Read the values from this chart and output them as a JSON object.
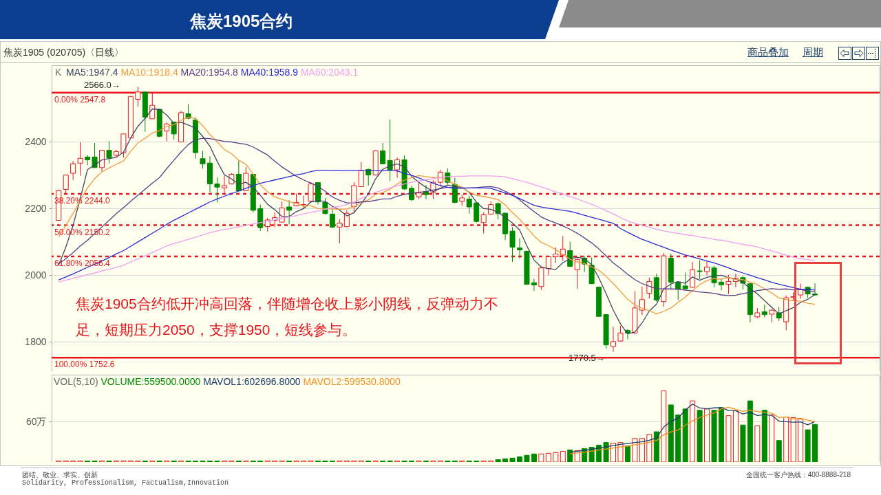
{
  "chart_data": [
    {
      "type": "candlestick",
      "title": "焦炭1905合约",
      "subtitle": "焦炭1905 (020705)〈日线〉",
      "categories": [
        null,
        null,
        null,
        null,
        null,
        null,
        null,
        null,
        null,
        null,
        null,
        null,
        null,
        null,
        null,
        null,
        null,
        null,
        null,
        null,
        null,
        null,
        null,
        null,
        null,
        null,
        null,
        null,
        null,
        null,
        null,
        null,
        null,
        null,
        null,
        null,
        null,
        null,
        null,
        null,
        null,
        null,
        null,
        null,
        null,
        null,
        null,
        null,
        null,
        null,
        null,
        null,
        null,
        null,
        null,
        null,
        null,
        null,
        null,
        null,
        null,
        null,
        null,
        null,
        null,
        null,
        null,
        null,
        null,
        null,
        null,
        null,
        null,
        null,
        null,
        null,
        null,
        null,
        null,
        null,
        null,
        null,
        null,
        null,
        null,
        null,
        null,
        null,
        null,
        null,
        null,
        null,
        null,
        null,
        null,
        null,
        null,
        null,
        null,
        null,
        null,
        null,
        null,
        null,
        null,
        null
      ],
      "ohlc": [
        [
          2164.8,
          2253.7,
          2164.8,
          2253.7
        ],
        [
          2257.7,
          2300.8,
          2245,
          2300.8
        ],
        [
          2306,
          2343,
          2286,
          2334.5
        ],
        [
          2336.5,
          2399,
          2299,
          2351
        ],
        [
          2355,
          2361,
          2330,
          2346.5
        ],
        [
          2355,
          2397,
          2323,
          2323
        ],
        [
          2323,
          2375,
          2311,
          2375
        ],
        [
          2375,
          2402,
          2336,
          2352
        ],
        [
          2360,
          2376,
          2353.5,
          2371.5
        ],
        [
          2367,
          2424,
          2353.5,
          2424
        ],
        [
          2412,
          2536.5,
          2412,
          2536.5
        ],
        [
          2528,
          2566,
          2505,
          2550
        ],
        [
          2550,
          2550,
          2431,
          2474.5
        ],
        [
          2469.5,
          2548,
          2469.5,
          2510
        ],
        [
          2498,
          2498,
          2414,
          2417
        ],
        [
          2433,
          2458,
          2402,
          2454
        ],
        [
          2460,
          2460,
          2407,
          2424
        ],
        [
          2400,
          2493,
          2400,
          2488
        ],
        [
          2484.5,
          2513.5,
          2468,
          2471
        ],
        [
          2466,
          2474,
          2350,
          2368
        ],
        [
          2350,
          2373.5,
          2320,
          2334.5
        ],
        [
          2336.5,
          2357,
          2249,
          2274
        ],
        [
          2274,
          2292.7,
          2218.7,
          2264.5
        ],
        [
          2262.4,
          2299.5,
          2242,
          2269
        ],
        [
          2274,
          2306,
          2272.5,
          2303
        ],
        [
          2303,
          2343,
          2249,
          2253.7
        ],
        [
          2253.7,
          2325,
          2253.7,
          2306
        ],
        [
          2303,
          2303,
          2188,
          2195
        ],
        [
          2200,
          2212,
          2132.5,
          2143
        ],
        [
          2146,
          2171.5,
          2131,
          2166
        ],
        [
          2164.8,
          2188,
          2144.5,
          2173
        ],
        [
          2159.4,
          2222,
          2158,
          2202
        ],
        [
          2205,
          2225.4,
          2152.7,
          2195
        ],
        [
          2208.5,
          2245.6,
          2206.5,
          2218.6
        ],
        [
          2212,
          2239,
          2202,
          2212
        ],
        [
          2222,
          2279,
          2218.6,
          2274
        ],
        [
          2278,
          2278,
          2212,
          2220
        ],
        [
          2218.6,
          2232,
          2181.6,
          2185
        ],
        [
          2183.6,
          2198.5,
          2141,
          2144.6
        ],
        [
          2144.6,
          2168,
          2096,
          2156.7
        ],
        [
          2146,
          2195,
          2144.6,
          2186
        ],
        [
          2206.5,
          2279,
          2185,
          2269
        ],
        [
          2265.8,
          2340,
          2264.5,
          2314
        ],
        [
          2317.6,
          2320,
          2269,
          2301
        ],
        [
          2301,
          2375,
          2299.5,
          2373.5
        ],
        [
          2373.5,
          2397,
          2334.5,
          2334.5
        ],
        [
          2344.5,
          2467.8,
          2282.6,
          2316.3
        ],
        [
          2316.3,
          2353.3,
          2292.7,
          2346.6
        ],
        [
          2346.6,
          2360,
          2255.7,
          2259
        ],
        [
          2261,
          2269,
          2222,
          2226.7
        ],
        [
          2235.5,
          2278,
          2228.7,
          2247
        ],
        [
          2251,
          2271,
          2228.7,
          2242
        ],
        [
          2249,
          2284.6,
          2228.7,
          2279
        ],
        [
          2279,
          2316,
          2265.8,
          2309.5
        ],
        [
          2307.5,
          2321,
          2272.5,
          2279
        ],
        [
          2272.5,
          2292.7,
          2215.3,
          2218.6
        ],
        [
          2222,
          2242,
          2208.5,
          2232
        ],
        [
          2228.7,
          2239,
          2185,
          2205
        ],
        [
          2217.3,
          2218.6,
          2158,
          2161.4
        ],
        [
          2158,
          2188,
          2125.7,
          2181.6
        ],
        [
          2183.6,
          2222,
          2181.6,
          2212
        ],
        [
          2215.3,
          2218.6,
          2168,
          2185
        ],
        [
          2186.3,
          2188,
          2105.5,
          2124.4
        ],
        [
          2132.5,
          2144.6,
          2040,
          2084
        ],
        [
          2082,
          2111,
          2050.3,
          2076
        ],
        [
          2071.9,
          2074,
          1970.9,
          1972.9
        ],
        [
          1977.6,
          1989.7,
          1952.7,
          1970.9
        ],
        [
          1966.2,
          2026.8,
          1956,
          2022
        ],
        [
          2020,
          2058.4,
          2000,
          2055.7
        ],
        [
          2055.7,
          2084,
          2036.8,
          2063.8
        ],
        [
          2060.4,
          2117.6,
          2043.6,
          2078.6
        ],
        [
          2073.9,
          2100.8,
          2024.8,
          2026.8
        ],
        [
          2016.7,
          2053.7,
          1959.4,
          2047
        ],
        [
          2051.7,
          2058.4,
          2010,
          2033.5
        ],
        [
          2030.1,
          2053.7,
          1972.9,
          1974.9
        ],
        [
          1964.2,
          1966.2,
          1875.3,
          1876.6
        ],
        [
          1882,
          1882,
          1780,
          1791
        ],
        [
          1786.4,
          1845,
          1770.5,
          1801
        ],
        [
          1802.6,
          1848.3,
          1801.3,
          1826.8
        ],
        [
          1834.9,
          1838.2,
          1808,
          1826.8
        ],
        [
          1826.7,
          1952.6,
          1824.6,
          1902
        ],
        [
          1895.3,
          1966,
          1880.5,
          1927
        ],
        [
          1945.8,
          1993,
          1930.4,
          1981.5
        ],
        [
          1993,
          2004.4,
          1921,
          1925.6
        ],
        [
          1921,
          2067,
          1905.4,
          2058.3
        ],
        [
          2051.5,
          2065,
          1959.3,
          1979.5
        ],
        [
          1979.5,
          1981.5,
          1925.6,
          1959.3
        ],
        [
          1968,
          2008.5,
          1954.6,
          1959.3
        ],
        [
          1964,
          2040,
          1962.7,
          2016.5
        ],
        [
          2013,
          2044.8,
          1988.3,
          2011
        ],
        [
          2011,
          2044.8,
          2000,
          2024.6
        ],
        [
          2022,
          2028.7,
          1964,
          1977.5
        ],
        [
          1979.5,
          1989.6,
          1954.6,
          1971.4
        ],
        [
          1972.8,
          2001.7,
          1943.8,
          1981.5
        ],
        [
          1981.5,
          2004.4,
          1964,
          1991
        ],
        [
          1993,
          1997.7,
          1957.3,
          1976
        ],
        [
          1974.8,
          1974.8,
          1858.3,
          1881.9
        ],
        [
          1875.1,
          1902,
          1871.8,
          1887.3
        ],
        [
          1890.6,
          1912.2,
          1873.8,
          1881.9
        ],
        [
          1883.2,
          1898.7,
          1858.3,
          1895.3
        ],
        [
          1887.3,
          1905.5,
          1863,
          1871.8
        ],
        [
          1860.3,
          1939,
          1834.7,
          1932.4
        ],
        [
          1933,
          1949,
          1922.3,
          1935.7
        ],
        [
          1941,
          1974.8,
          1929,
          1957.3
        ],
        [
          1964,
          1966,
          1932.4,
          1943.8
        ],
        [
          1943.8,
          1976,
          1939,
          1941
        ]
      ],
      "colors": [
        "#e8141c",
        "#e8141c",
        "#e8141c",
        "#e8141c",
        "#008a00",
        "#008a00",
        "#e8141c",
        "#008a00",
        "#e8141c",
        "#e8141c",
        "#e8141c",
        "#e8141c",
        "#008a00",
        "#e8141c",
        "#008a00",
        "#e8141c",
        "#008a00",
        "#e8141c",
        "#008a00",
        "#008a00",
        "#008a00",
        "#008a00",
        "#008a00",
        "#e8141c",
        "#e8141c",
        "#008a00",
        "#e8141c",
        "#008a00",
        "#008a00",
        "#e8141c",
        "#e8141c",
        "#e8141c",
        "#008a00",
        "#e8141c",
        "#e8141c",
        "#e8141c",
        "#008a00",
        "#008a00",
        "#008a00",
        "#e8141c",
        "#e8141c",
        "#e8141c",
        "#e8141c",
        "#008a00",
        "#e8141c",
        "#008a00",
        "#008a00",
        "#e8141c",
        "#008a00",
        "#008a00",
        "#e8141c",
        "#008a00",
        "#e8141c",
        "#e8141c",
        "#008a00",
        "#008a00",
        "#e8141c",
        "#008a00",
        "#008a00",
        "#e8141c",
        "#e8141c",
        "#008a00",
        "#008a00",
        "#008a00",
        "#008a00",
        "#008a00",
        "#008a00",
        "#e8141c",
        "#e8141c",
        "#e8141c",
        "#e8141c",
        "#008a00",
        "#e8141c",
        "#008a00",
        "#008a00",
        "#008a00",
        "#008a00",
        "#e8141c",
        "#e8141c",
        "#008a00",
        "#e8141c",
        "#e8141c",
        "#e8141c",
        "#008a00",
        "#e8141c",
        "#008a00",
        "#008a00",
        "#008a00",
        "#e8141c",
        "#008a00",
        "#e8141c",
        "#008a00",
        "#008a00",
        "#e8141c",
        "#e8141c",
        "#008a00",
        "#008a00",
        "#e8141c",
        "#008a00",
        "#e8141c",
        "#008a00",
        "#e8141c",
        "#e8141c",
        "#e8141c",
        "#008a00",
        "#008a00"
      ],
      "series": [
        {
          "name": "MA5:1947.4",
          "type": "line",
          "color": "#3c4660",
          "values": [
            2030,
            2085,
            2150,
            2230,
            2317,
            2331,
            2346,
            2350,
            2354,
            2369,
            2412,
            2447,
            2471,
            2499,
            2498,
            2481,
            2456,
            2459,
            2451,
            2441,
            2417,
            2387,
            2342,
            2302,
            2289,
            2273,
            2279,
            2265,
            2240,
            2213,
            2197,
            2176,
            2176,
            2191,
            2200,
            2220,
            2224,
            2222,
            2207,
            2196,
            2178,
            2188,
            2214,
            2245,
            2289,
            2318,
            2328,
            2334,
            2326,
            2297,
            2279,
            2264,
            2251,
            2261,
            2271,
            2266,
            2264,
            2249,
            2219,
            2200,
            2198,
            2189,
            2173,
            2157,
            2136,
            2088,
            2046,
            2025,
            2020,
            2017,
            2038,
            2049,
            2054,
            2050,
            2032,
            1992,
            1945,
            1895,
            1854,
            1824,
            1830,
            1857,
            1893,
            1913,
            1959,
            1974,
            1981,
            1976,
            1995,
            1985,
            1994,
            1998,
            2000,
            1993,
            1989,
            1979,
            1960,
            1944,
            1924,
            1904,
            1884,
            1894,
            1903,
            1919,
            1928,
            1942
          ]
        },
        {
          "name": "MA10:1918.4",
          "type": "line",
          "color": "#f59a3c",
          "values": [
            2115,
            2150,
            2185,
            2225,
            2262,
            2290,
            2310,
            2322,
            2333,
            2343,
            2372,
            2397,
            2411,
            2427,
            2434,
            2447,
            2452,
            2465,
            2475,
            2470,
            2449,
            2422,
            2401,
            2377,
            2365,
            2345,
            2333,
            2304,
            2271,
            2251,
            2235,
            2228,
            2221,
            2216,
            2207,
            2209,
            2200,
            2199,
            2199,
            2198,
            2199,
            2206,
            2218,
            2226,
            2243,
            2248,
            2258,
            2274,
            2286,
            2293,
            2299,
            2296,
            2293,
            2294,
            2284,
            2273,
            2264,
            2250,
            2240,
            2236,
            2232,
            2227,
            2211,
            2188,
            2168,
            2143,
            2118,
            2099,
            2089,
            2077,
            2063,
            2048,
            2040,
            2035,
            2025,
            2015,
            1997,
            1975,
            1952,
            1928,
            1911,
            1901,
            1894,
            1884,
            1892,
            1902,
            1919,
            1935,
            1954,
            1972,
            1984,
            1990,
            1988,
            1994,
            1987,
            1987,
            1979,
            1972,
            1959,
            1947,
            1932,
            1927,
            1924,
            1922,
            1916,
            1913
          ]
        },
        {
          "name": "MA20:1954.8",
          "type": "line",
          "color": "#5b3c8c",
          "values": [
            2034,
            2050,
            2068,
            2088,
            2105,
            2125,
            2145,
            2165,
            2185,
            2203,
            2222,
            2240,
            2258,
            2276,
            2293,
            2320,
            2345,
            2370,
            2392,
            2407,
            2411,
            2410,
            2406,
            2402,
            2400,
            2396,
            2393,
            2385,
            2373,
            2361,
            2342,
            2325,
            2311,
            2297,
            2286,
            2277,
            2267,
            2252,
            2235,
            2225,
            2217,
            2217,
            2220,
            2221,
            2225,
            2229,
            2229,
            2237,
            2243,
            2246,
            2249,
            2251,
            2256,
            2260,
            2264,
            2261,
            2261,
            2262,
            2263,
            2265,
            2266,
            2262,
            2252,
            2241,
            2226,
            2208,
            2191,
            2175,
            2165,
            2157,
            2148,
            2138,
            2126,
            2112,
            2097,
            2079,
            2058,
            2037,
            2021,
            2003,
            1987,
            1975,
            1967,
            1960,
            1959,
            1959,
            1958,
            1955,
            1953,
            1950,
            1948,
            1946,
            1941,
            1939,
            1940,
            1945,
            1949,
            1954,
            1957,
            1960,
            1958,
            1959,
            1956,
            1958,
            1952,
            1950
          ]
        },
        {
          "name": "MA40:1958.9",
          "type": "line",
          "color": "#2a2ad8",
          "values": [
            1986,
            1995,
            2004,
            2014,
            2024,
            2033,
            2043,
            2053,
            2064,
            2074,
            2087,
            2100,
            2113,
            2126,
            2139,
            2153,
            2165,
            2176,
            2187,
            2198,
            2209,
            2220,
            2229,
            2237,
            2245,
            2253,
            2261,
            2269,
            2276,
            2281,
            2286,
            2291,
            2296,
            2301,
            2305,
            2311,
            2315,
            2315,
            2315,
            2314,
            2314,
            2314,
            2314,
            2314,
            2314,
            2314,
            2314,
            2313,
            2306,
            2300,
            2292,
            2284,
            2276,
            2269,
            2264,
            2262,
            2262,
            2262,
            2262,
            2262,
            2261,
            2254,
            2247,
            2240,
            2230,
            2220,
            2210,
            2205,
            2201,
            2198,
            2195,
            2192,
            2186,
            2180,
            2174,
            2168,
            2162,
            2156,
            2140,
            2129,
            2118,
            2108,
            2100,
            2092,
            2084,
            2076,
            2068,
            2061,
            2055,
            2049,
            2043,
            2037,
            2030,
            2022,
            2014,
            2007,
            2000,
            1993,
            1986,
            1979,
            1973,
            1968,
            1963,
            1958,
            1957,
            1956
          ]
        },
        {
          "name": "MA60:2043.1",
          "type": "line",
          "color": "#f29cf0",
          "values": [
            1980,
            1985,
            1991,
            1996,
            2002,
            2007,
            2013,
            2018,
            2024,
            2030,
            2040,
            2049,
            2059,
            2068,
            2078,
            2088,
            2095,
            2101,
            2108,
            2114,
            2121,
            2128,
            2133,
            2137,
            2141,
            2145,
            2150,
            2154,
            2158,
            2162,
            2166,
            2171,
            2175,
            2179,
            2184,
            2189,
            2193,
            2198,
            2203,
            2207,
            2212,
            2220,
            2230,
            2240,
            2249,
            2256,
            2262,
            2268,
            2274,
            2279,
            2283,
            2286,
            2290,
            2293,
            2296,
            2297,
            2297,
            2298,
            2298,
            2298,
            2298,
            2297,
            2295,
            2290,
            2284,
            2279,
            2272,
            2265,
            2258,
            2250,
            2244,
            2236,
            2229,
            2221,
            2213,
            2204,
            2194,
            2184,
            2173,
            2163,
            2156,
            2150,
            2144,
            2138,
            2133,
            2129,
            2126,
            2122,
            2119,
            2115,
            2112,
            2108,
            2105,
            2101,
            2097,
            2093,
            2089,
            2085,
            2079,
            2073,
            2067,
            2060,
            2054,
            2050,
            2047,
            2044
          ]
        }
      ],
      "ylim": [
        1712,
        2630
      ],
      "yticks": [
        1800,
        2000,
        2200,
        2400
      ],
      "grid": "y",
      "legend": "top left",
      "tick_labels": "y",
      "ref_lines": [
        {
          "axis": "y",
          "value": 2547.8,
          "label": "0.00% 2547.8",
          "color": "#e8141c",
          "line_style": "solid"
        },
        {
          "axis": "y",
          "value": 2244.0,
          "label": "38.20% 2244.0",
          "color": "#e8141c",
          "line_style": "dashed"
        },
        {
          "axis": "y",
          "value": 2150.2,
          "label": "50.00% 2150.2",
          "color": "#e8141c",
          "line_style": "dashed"
        },
        {
          "axis": "y",
          "value": 2056.4,
          "label": "61.80% 2056.4",
          "color": "#e8141c",
          "line_style": "dashed"
        },
        {
          "axis": "y",
          "value": 1752.6,
          "label": "100.00% 1752.6",
          "color": "#e8141c",
          "line_style": "solid"
        }
      ],
      "annotations": [
        "K",
        "2566.0→",
        "1770.5→",
        "焦炭1905合约低开冲高回落，伴随增仓收上影小阴线，反弹动力不足，短期压力2050，支撑1950，短线参与。",
        "商品叠加",
        "周期",
        "团结、敬业、求实、创新",
        "Solidarity, Professionalism, Factualism,Innovation",
        "全国统一客户热线：400-8888-218"
      ]
    },
    {
      "type": "bar",
      "title": "VOL(5,10)",
      "categories": [
        null,
        null,
        null,
        null,
        null,
        null,
        null,
        null,
        null,
        null,
        null,
        null,
        null,
        null,
        null,
        null,
        null,
        null,
        null,
        null,
        null,
        null,
        null,
        null,
        null,
        null,
        null,
        null,
        null,
        null,
        null,
        null,
        null,
        null,
        null,
        null,
        null,
        null,
        null,
        null,
        null,
        null,
        null,
        null,
        null,
        null,
        null,
        null,
        null,
        null,
        null,
        null,
        null,
        null,
        null,
        null,
        null,
        null,
        null,
        null,
        null,
        null,
        null,
        null,
        null,
        null,
        null,
        null,
        null,
        null,
        null,
        null,
        null,
        null,
        null,
        null,
        null,
        null,
        null,
        null,
        null,
        null,
        null,
        null,
        null,
        null,
        null,
        null,
        null,
        null,
        null,
        null,
        null,
        null,
        null,
        null,
        null,
        null,
        null,
        null,
        null,
        null,
        null,
        null,
        null,
        null
      ],
      "series": [
        {
          "name": "VOLUME:559500.0000",
          "type": "bar",
          "colors": [
            "#e8141c",
            "#e8141c",
            "#e8141c",
            "#e8141c",
            "#008a00",
            "#008a00",
            "#e8141c",
            "#008a00",
            "#e8141c",
            "#e8141c",
            "#e8141c",
            "#e8141c",
            "#008a00",
            "#e8141c",
            "#008a00",
            "#e8141c",
            "#008a00",
            "#e8141c",
            "#008a00",
            "#008a00",
            "#008a00",
            "#008a00",
            "#008a00",
            "#e8141c",
            "#e8141c",
            "#008a00",
            "#e8141c",
            "#008a00",
            "#008a00",
            "#e8141c",
            "#e8141c",
            "#e8141c",
            "#008a00",
            "#e8141c",
            "#e8141c",
            "#e8141c",
            "#008a00",
            "#008a00",
            "#008a00",
            "#e8141c",
            "#e8141c",
            "#e8141c",
            "#e8141c",
            "#008a00",
            "#e8141c",
            "#008a00",
            "#008a00",
            "#e8141c",
            "#008a00",
            "#008a00",
            "#e8141c",
            "#008a00",
            "#e8141c",
            "#e8141c",
            "#008a00",
            "#008a00",
            "#e8141c",
            "#008a00",
            "#008a00",
            "#e8141c",
            "#e8141c",
            "#008a00",
            "#008a00",
            "#008a00",
            "#008a00",
            "#008a00",
            "#008a00",
            "#e8141c",
            "#e8141c",
            "#e8141c",
            "#e8141c",
            "#008a00",
            "#e8141c",
            "#008a00",
            "#008a00",
            "#008a00",
            "#008a00",
            "#e8141c",
            "#e8141c",
            "#008a00",
            "#e8141c",
            "#e8141c",
            "#e8141c",
            "#008a00",
            "#e8141c",
            "#008a00",
            "#008a00",
            "#008a00",
            "#e8141c",
            "#008a00",
            "#e8141c",
            "#008a00",
            "#008a00",
            "#e8141c",
            "#e8141c",
            "#008a00",
            "#008a00",
            "#e8141c",
            "#008a00",
            "#e8141c",
            "#008a00",
            "#e8141c",
            "#e8141c",
            "#e8141c",
            "#008a00",
            "#008a00"
          ],
          "values": [
            1.5,
            1.5,
            1.5,
            1.5,
            1.5,
            1.5,
            1.5,
            1.5,
            1.5,
            1.5,
            1.5,
            1.5,
            1.5,
            1.5,
            1.5,
            1.5,
            1.5,
            1.5,
            1.5,
            1.5,
            1.5,
            1.5,
            1.5,
            1.5,
            1.5,
            1.5,
            1.5,
            1.5,
            1.5,
            1.5,
            1.5,
            1.5,
            1.5,
            1.5,
            1.5,
            1.5,
            1.5,
            1.5,
            1.5,
            1.5,
            1.5,
            1.5,
            1.5,
            1.5,
            1.5,
            1.5,
            1.5,
            1.5,
            1.5,
            1.5,
            1.5,
            1.5,
            1.5,
            1.5,
            1.5,
            1.5,
            1.5,
            1.5,
            1.5,
            1.5,
            1.5,
            3.5,
            4.8,
            5.8,
            7.9,
            10,
            12,
            12,
            13,
            14,
            16,
            18,
            17,
            20,
            22,
            25,
            29,
            28,
            29,
            24,
            35,
            35,
            41,
            45,
            106,
            85,
            70,
            79,
            91,
            77,
            79,
            77,
            81,
            69,
            76,
            55,
            91,
            54,
            77,
            70,
            32,
            67,
            66,
            64,
            48,
            55.95
          ]
        },
        {
          "name": "MAVOL1:602696.8000",
          "type": "line",
          "color": "#1c3a6e",
          "values": [
            null,
            null,
            null,
            null,
            null,
            null,
            null,
            null,
            null,
            null,
            null,
            null,
            null,
            null,
            null,
            null,
            null,
            null,
            null,
            null,
            null,
            null,
            null,
            null,
            null,
            null,
            null,
            null,
            null,
            null,
            null,
            null,
            null,
            null,
            null,
            null,
            null,
            null,
            null,
            null,
            null,
            null,
            null,
            null,
            null,
            null,
            null,
            null,
            null,
            null,
            null,
            null,
            null,
            null,
            null,
            null,
            null,
            null,
            null,
            null,
            null,
            null,
            null,
            null,
            null,
            null,
            null,
            null,
            null,
            null,
            null,
            14.8,
            16,
            17.4,
            18.8,
            20.8,
            22.6,
            24.4,
            26.2,
            27.6,
            29,
            30,
            32.4,
            36,
            52.2,
            60.2,
            65.4,
            77,
            86.2,
            80.4,
            79.2,
            80.6,
            81,
            76.6,
            76.4,
            71.4,
            74.4,
            69.2,
            70.6,
            69.4,
            61,
            60,
            59.2,
            59.8,
            55.4,
            60.26968
          ]
        },
        {
          "name": "MAVOL2:599530.8000",
          "type": "line",
          "color": "#f5901e",
          "values": [
            null,
            null,
            null,
            null,
            null,
            null,
            null,
            null,
            null,
            null,
            null,
            null,
            null,
            null,
            null,
            null,
            null,
            null,
            null,
            null,
            null,
            null,
            null,
            null,
            null,
            null,
            null,
            null,
            null,
            null,
            null,
            null,
            null,
            null,
            null,
            null,
            null,
            null,
            null,
            null,
            null,
            null,
            null,
            null,
            null,
            null,
            null,
            null,
            null,
            null,
            null,
            null,
            null,
            null,
            null,
            null,
            null,
            null,
            null,
            null,
            null,
            null,
            null,
            null,
            null,
            null,
            null,
            null,
            null,
            null,
            null,
            12.5,
            13.5,
            14.8,
            16.2,
            17.8,
            19.3,
            20.9,
            22.4,
            23.8,
            25.8,
            27.2,
            29.5,
            31.8,
            40.6,
            44.6,
            47.7,
            54.7,
            61.1,
            66.3,
            69.7,
            73,
            79,
            81.4,
            78.4,
            75.3,
            77.5,
            75.1,
            73.6,
            72.9,
            66.2,
            67.2,
            64.2,
            65.2,
            62.4,
            59.95308
          ]
        }
      ],
      "ylim": [
        0,
        130
      ],
      "yticks": [
        {
          "value": 60,
          "label": "60万"
        }
      ],
      "grid": "y",
      "legend": "top left",
      "tick_labels": "y"
    }
  ]
}
